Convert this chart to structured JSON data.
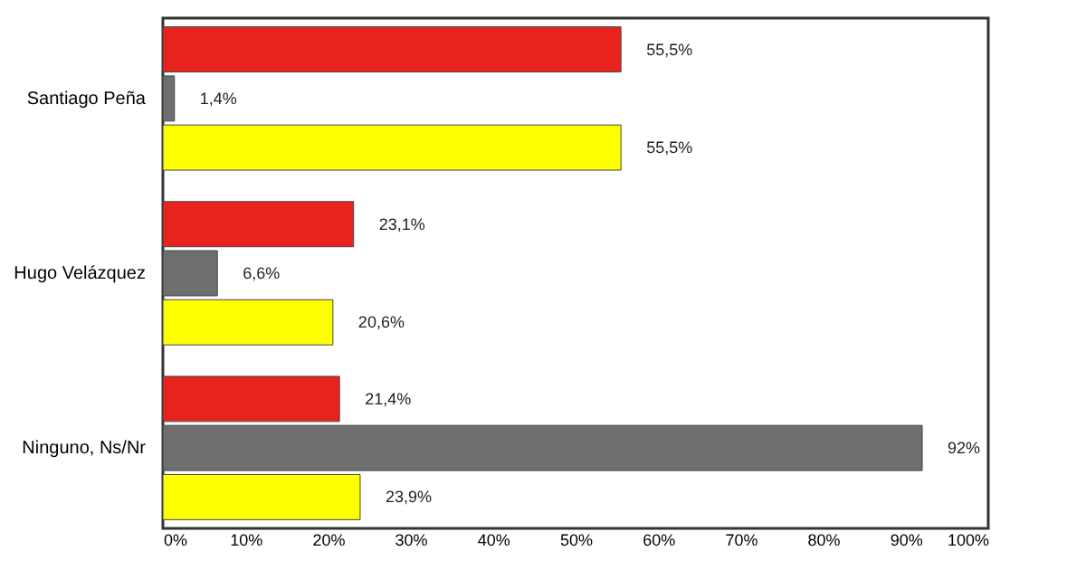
{
  "chart_data": {
    "type": "bar",
    "orientation": "horizontal",
    "categories": [
      "Santiago Peña",
      "Hugo Velázquez",
      "Ninguno, Ns/Nr"
    ],
    "series": [
      {
        "color": "#e8231e",
        "values": [
          55.5,
          23.1,
          21.4
        ],
        "value_labels": [
          "55,5%",
          "23,1%",
          "21,4%"
        ]
      },
      {
        "color": "#6e6e6e",
        "values": [
          1.4,
          6.6,
          92
        ],
        "value_labels": [
          "1,4%",
          "6,6%",
          "92%"
        ]
      },
      {
        "color": "#ffff00",
        "values": [
          55.5,
          20.6,
          23.9
        ],
        "value_labels": [
          "55,5%",
          "20,6%",
          "23,9%"
        ]
      }
    ],
    "xlim": [
      0,
      100
    ],
    "xticks": [
      {
        "value": 0,
        "label": "0%"
      },
      {
        "value": 10,
        "label": "10%"
      },
      {
        "value": 20,
        "label": "20%"
      },
      {
        "value": 30,
        "label": "30%"
      },
      {
        "value": 40,
        "label": "40%"
      },
      {
        "value": 50,
        "label": "50%"
      },
      {
        "value": 60,
        "label": "60%"
      },
      {
        "value": 70,
        "label": "70%"
      },
      {
        "value": 80,
        "label": "80%"
      },
      {
        "value": 90,
        "label": "90%"
      },
      {
        "value": 100,
        "label": "100%"
      }
    ],
    "grid": false
  }
}
